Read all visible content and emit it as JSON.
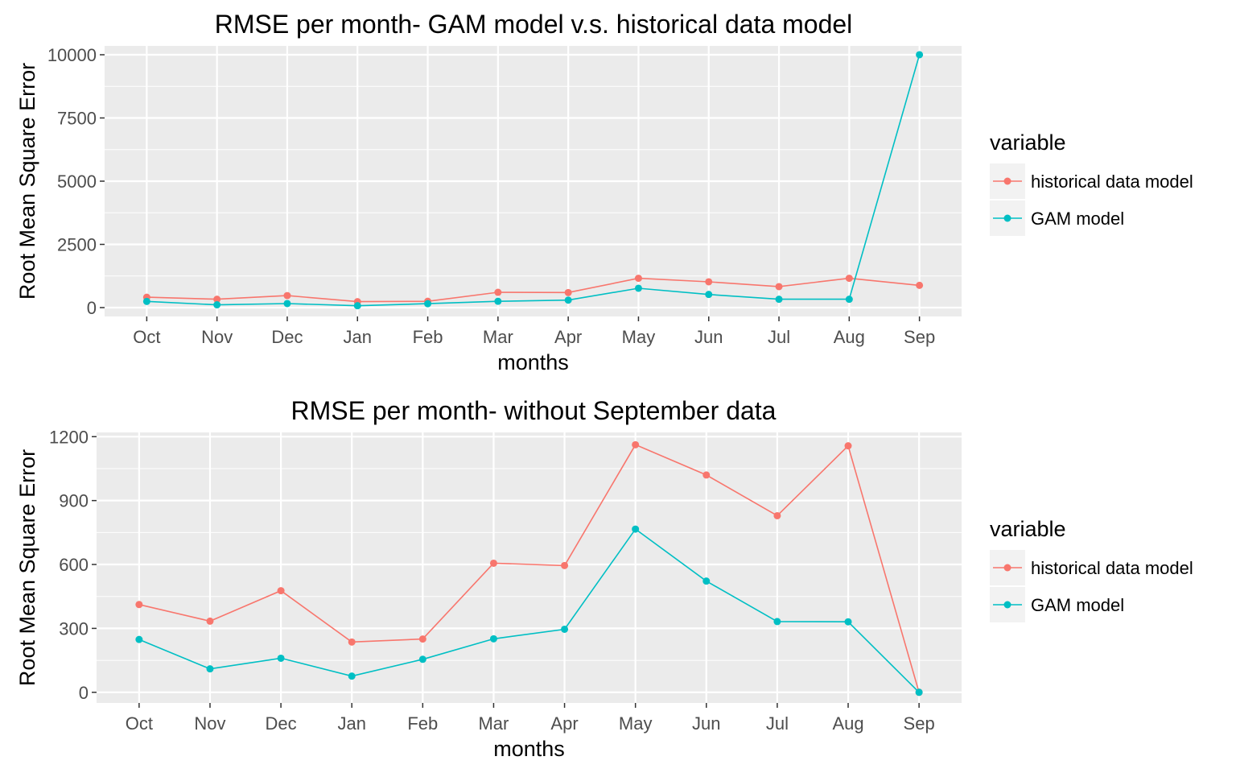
{
  "colors": {
    "panel_bg": "#EBEBEB",
    "grid": "#FFFFFF",
    "historical": "#F8766D",
    "gam": "#00BFC4",
    "legend_key_bg": "#F2F2F2",
    "tick_text": "#4D4D4D",
    "title_text": "#000000"
  },
  "chart_data": [
    {
      "type": "line",
      "title": "RMSE per month- GAM model v.s. historical data model",
      "xlabel": "months",
      "ylabel": "Root Mean Square Error",
      "categories": [
        "Oct",
        "Nov",
        "Dec",
        "Jan",
        "Feb",
        "Mar",
        "Apr",
        "May",
        "Jun",
        "Jul",
        "Aug",
        "Sep"
      ],
      "yticks": [
        0,
        2500,
        5000,
        7500,
        10000
      ],
      "ylim": [
        -350,
        10350
      ],
      "grid": true,
      "legend": {
        "title": "variable",
        "position": "right",
        "entries": [
          "historical data model",
          "GAM model"
        ]
      },
      "series": [
        {
          "name": "historical data model",
          "color": "#F8766D",
          "values": [
            410,
            330,
            475,
            235,
            250,
            605,
            595,
            1160,
            1020,
            830,
            1160,
            880
          ]
        },
        {
          "name": "GAM model",
          "color": "#00BFC4",
          "values": [
            245,
            110,
            160,
            75,
            155,
            250,
            295,
            765,
            520,
            330,
            330,
            10000
          ]
        }
      ]
    },
    {
      "type": "line",
      "title": "RMSE per month- without September data",
      "xlabel": "months",
      "ylabel": "Root Mean Square Error",
      "categories": [
        "Oct",
        "Nov",
        "Dec",
        "Jan",
        "Feb",
        "Mar",
        "Apr",
        "May",
        "Jun",
        "Jul",
        "Aug",
        "Sep"
      ],
      "yticks": [
        0,
        300,
        600,
        900,
        1200
      ],
      "ylim": [
        -50,
        1220
      ],
      "grid": true,
      "legend": {
        "title": "variable",
        "position": "right",
        "entries": [
          "historical data model",
          "GAM model"
        ]
      },
      "series": [
        {
          "name": "historical data model",
          "color": "#F8766D",
          "values": [
            412,
            334,
            477,
            236,
            250,
            606,
            595,
            1162,
            1020,
            829,
            1157,
            0
          ]
        },
        {
          "name": "GAM model",
          "color": "#00BFC4",
          "values": [
            248,
            110,
            160,
            76,
            155,
            251,
            296,
            766,
            522,
            332,
            331,
            0
          ]
        }
      ]
    }
  ]
}
